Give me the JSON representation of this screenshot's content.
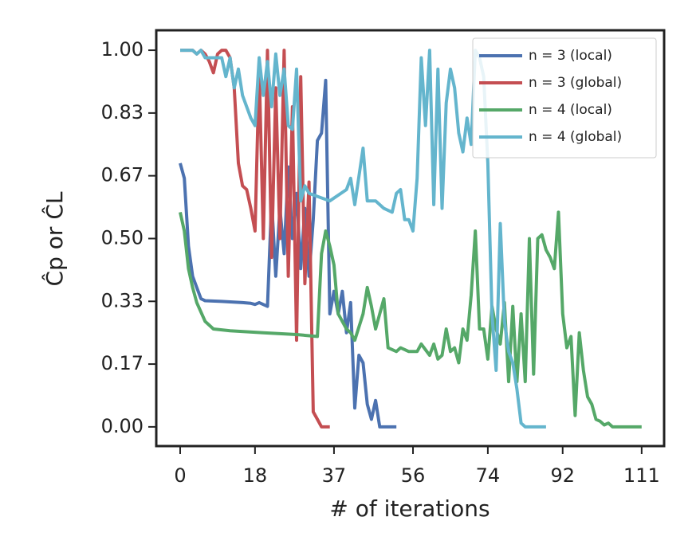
{
  "chart_data": {
    "type": "line",
    "xlabel": "# of iterations",
    "ylabel": "Ĉp or ĈL",
    "xlim": [
      -5.75,
      116.4
    ],
    "ylim": [
      -0.051,
      1.053
    ],
    "xticks": [
      0,
      18,
      37,
      56,
      74,
      92,
      111
    ],
    "yticks": [
      {
        "value": 0,
        "label": "0.00"
      },
      {
        "value": 0.1667,
        "label": "0.17"
      },
      {
        "value": 0.3333,
        "label": "0.33"
      },
      {
        "value": 0.5,
        "label": "0.50"
      },
      {
        "value": 0.6667,
        "label": "0.67"
      },
      {
        "value": 0.8333,
        "label": "0.83"
      },
      {
        "value": 1,
        "label": "1.00"
      }
    ],
    "grid": false,
    "legend": "upper right",
    "series": [
      {
        "name": "n = 3 (local)",
        "color": "#4c72b0",
        "x": [
          0,
          1,
          2,
          3,
          4,
          5,
          6,
          10,
          15,
          17,
          18,
          19,
          21,
          22,
          23,
          24,
          25,
          26,
          27,
          28,
          29,
          30,
          31,
          32,
          33,
          34,
          35,
          36,
          37,
          38,
          39,
          40,
          41,
          42,
          43,
          44,
          45,
          46,
          47,
          48,
          52
        ],
        "values": [
          0.7,
          0.66,
          0.48,
          0.4,
          0.37,
          0.34,
          0.335,
          0.333,
          0.33,
          0.328,
          0.325,
          0.33,
          0.32,
          0.6,
          0.4,
          0.58,
          0.46,
          0.69,
          0.5,
          0.62,
          0.42,
          0.58,
          0.4,
          0.55,
          0.76,
          0.78,
          0.92,
          0.3,
          0.36,
          0.3,
          0.36,
          0.25,
          0.33,
          0.05,
          0.19,
          0.17,
          0.06,
          0.02,
          0.07,
          0.0,
          0.0
        ]
      },
      {
        "name": "n = 3 (global)",
        "color": "#c44e52",
        "x": [
          0,
          3,
          4,
          5,
          6,
          7,
          8,
          9,
          10,
          11,
          12,
          13,
          14,
          15,
          16,
          17,
          18,
          19,
          20,
          21,
          22,
          23,
          24,
          25,
          26,
          27,
          28,
          29,
          30,
          31,
          32,
          33,
          34,
          36
        ],
        "values": [
          1.0,
          1.0,
          0.99,
          1.0,
          0.99,
          0.97,
          0.94,
          0.99,
          1.0,
          1.0,
          0.98,
          0.9,
          0.7,
          0.64,
          0.63,
          0.58,
          0.52,
          0.95,
          0.5,
          1.0,
          0.45,
          0.9,
          0.5,
          1.0,
          0.4,
          0.85,
          0.23,
          0.93,
          0.38,
          0.65,
          0.04,
          0.02,
          0.0,
          0.0
        ]
      },
      {
        "name": "n = 4 (local)",
        "color": "#55a868",
        "x": [
          0,
          1,
          2,
          3,
          4,
          6,
          8,
          12,
          20,
          28,
          33,
          34,
          35,
          36,
          37,
          38,
          40,
          41,
          42,
          44,
          45,
          46,
          47,
          48,
          49,
          50,
          52,
          53,
          55,
          57,
          58,
          60,
          61,
          62,
          63,
          64,
          65,
          66,
          67,
          68,
          69,
          70,
          71,
          72,
          73,
          74,
          75,
          76,
          77,
          78,
          79,
          80,
          81,
          82,
          83,
          84,
          85,
          86,
          87,
          88,
          89,
          90,
          91,
          92,
          93,
          94,
          95,
          96,
          97,
          98,
          99,
          100,
          101,
          102,
          103,
          104,
          111
        ],
        "values": [
          0.57,
          0.52,
          0.42,
          0.37,
          0.33,
          0.28,
          0.26,
          0.255,
          0.25,
          0.245,
          0.24,
          0.46,
          0.52,
          0.48,
          0.43,
          0.3,
          0.26,
          0.25,
          0.23,
          0.3,
          0.37,
          0.32,
          0.26,
          0.3,
          0.34,
          0.21,
          0.2,
          0.21,
          0.2,
          0.2,
          0.22,
          0.19,
          0.22,
          0.18,
          0.19,
          0.26,
          0.2,
          0.21,
          0.17,
          0.26,
          0.23,
          0.35,
          0.52,
          0.26,
          0.26,
          0.18,
          0.32,
          0.26,
          0.22,
          0.33,
          0.12,
          0.32,
          0.12,
          0.3,
          0.12,
          0.5,
          0.14,
          0.5,
          0.51,
          0.47,
          0.45,
          0.42,
          0.57,
          0.3,
          0.21,
          0.24,
          0.03,
          0.25,
          0.15,
          0.08,
          0.06,
          0.02,
          0.015,
          0.005,
          0.01,
          0.0,
          0.0
        ]
      },
      {
        "name": "n = 4 (global)",
        "color": "#64b5cd",
        "x": [
          0,
          3,
          4,
          5,
          6,
          10,
          11,
          12,
          13,
          14,
          15,
          16,
          17,
          18,
          19,
          20,
          21,
          22,
          23,
          24,
          25,
          26,
          27,
          28,
          29,
          30,
          31,
          36,
          40,
          41,
          42,
          44,
          45,
          47,
          49,
          51,
          52,
          53,
          54,
          55,
          56,
          57,
          58,
          59,
          60,
          61,
          62,
          63,
          64,
          65,
          66,
          67,
          68,
          69,
          70,
          71,
          72,
          73,
          74,
          75,
          76,
          77,
          78,
          79,
          80,
          81,
          82,
          83,
          88
        ],
        "values": [
          1.0,
          1.0,
          0.99,
          1.0,
          0.98,
          0.98,
          0.93,
          0.98,
          0.9,
          0.95,
          0.88,
          0.85,
          0.82,
          0.8,
          0.98,
          0.88,
          0.97,
          0.85,
          0.99,
          0.88,
          0.95,
          0.8,
          0.79,
          0.95,
          0.6,
          0.64,
          0.62,
          0.6,
          0.63,
          0.66,
          0.59,
          0.74,
          0.6,
          0.6,
          0.58,
          0.57,
          0.62,
          0.63,
          0.55,
          0.55,
          0.52,
          0.66,
          0.98,
          0.8,
          1.0,
          0.59,
          0.95,
          0.58,
          0.86,
          0.95,
          0.9,
          0.78,
          0.73,
          0.82,
          0.75,
          1.0,
          0.98,
          0.93,
          0.7,
          0.3,
          0.15,
          0.54,
          0.28,
          0.2,
          0.17,
          0.1,
          0.01,
          0.0,
          0.0
        ]
      }
    ]
  }
}
